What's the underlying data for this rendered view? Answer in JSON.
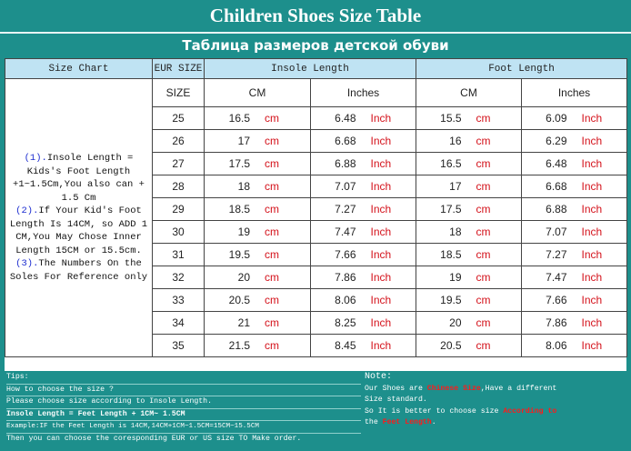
{
  "title_en": "Children Shoes Size Table",
  "title_ru": "Таблица размеров детской обуви",
  "header": {
    "size_chart": "Size Chart",
    "eur_size": "EUR SIZE",
    "insole_length": "Insole Length",
    "foot_length": "Foot Length",
    "size": "SIZE",
    "cm": "CM",
    "inches": "Inches"
  },
  "notes": {
    "n1_num": "(1).",
    "n1_text": "Insole Length = Kids's Foot Length +1~1.5Cm,You also can + 1.5 Cm",
    "n2_num": "(2).",
    "n2_text": "If Your Kid's Foot Length Is 14CM,  so ADD 1 CM,You May Chose Inner Length 15CM or 15.5cm.",
    "n3_num": "(3).",
    "n3_text": "The Numbers On the Soles For Reference only"
  },
  "units": {
    "cm": "cm",
    "inch": "Inch"
  },
  "rows": [
    {
      "eur": "25",
      "insole_cm": "16.5",
      "insole_in": "6.48",
      "foot_cm": "15.5",
      "foot_in": "6.09"
    },
    {
      "eur": "26",
      "insole_cm": "17",
      "insole_in": "6.68",
      "foot_cm": "16",
      "foot_in": "6.29"
    },
    {
      "eur": "27",
      "insole_cm": "17.5",
      "insole_in": "6.88",
      "foot_cm": "16.5",
      "foot_in": "6.48"
    },
    {
      "eur": "28",
      "insole_cm": "18",
      "insole_in": "7.07",
      "foot_cm": "17",
      "foot_in": "6.68"
    },
    {
      "eur": "29",
      "insole_cm": "18.5",
      "insole_in": "7.27",
      "foot_cm": "17.5",
      "foot_in": "6.88"
    },
    {
      "eur": "30",
      "insole_cm": "19",
      "insole_in": "7.47",
      "foot_cm": "18",
      "foot_in": "7.07"
    },
    {
      "eur": "31",
      "insole_cm": "19.5",
      "insole_in": "7.66",
      "foot_cm": "18.5",
      "foot_in": "7.27"
    },
    {
      "eur": "32",
      "insole_cm": "20",
      "insole_in": "7.86",
      "foot_cm": "19",
      "foot_in": "7.47"
    },
    {
      "eur": "33",
      "insole_cm": "20.5",
      "insole_in": "8.06",
      "foot_cm": "19.5",
      "foot_in": "7.66"
    },
    {
      "eur": "34",
      "insole_cm": "21",
      "insole_in": "8.25",
      "foot_cm": "20",
      "foot_in": "7.86"
    },
    {
      "eur": "35",
      "insole_cm": "21.5",
      "insole_in": "8.45",
      "foot_cm": "20.5",
      "foot_in": "8.06"
    }
  ],
  "footer_left": {
    "tips": "Tips:",
    "how": "How to choose the size ?",
    "please": "Please choose size according to Insole Length.",
    "formula": "Insole Length = Feet Length + 1CM~ 1.5CM",
    "example": "Example:IF the Feet Length is 14CM,14CM+1CM~1.5CM=15CM~15.5CM",
    "then": "Then you can choose the coresponding EUR or US size TO Make order."
  },
  "footer_right": {
    "note": "Note:",
    "l1_a": "Our Shoes are ",
    "l1_b": "Chinese Size",
    "l1_c": ",Have a different",
    "l2": "Size standard.",
    "l3_a": "So It is better to choose size ",
    "l3_b": "According to",
    "l4_a": "the ",
    "l4_b": "Feet Length",
    "l4_c": "."
  },
  "colors": {
    "teal": "#1d8f8c",
    "header_bg": "#bfe3f3",
    "unit_red": "#d4121b",
    "note_blue": "#1f2fd0"
  }
}
